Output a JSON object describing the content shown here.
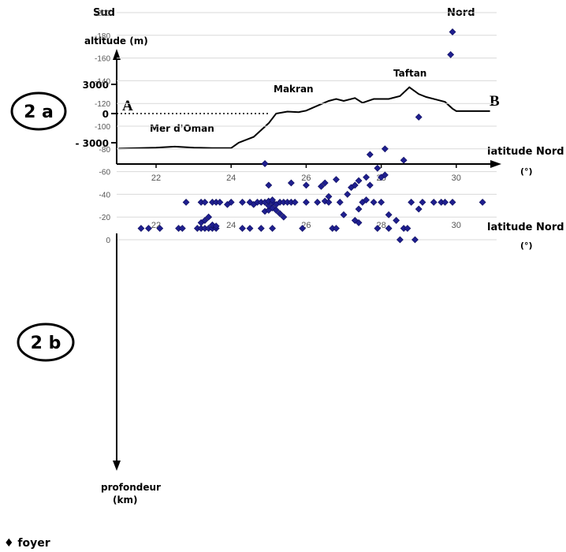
{
  "header": {
    "left": "Sud",
    "right": "Nord"
  },
  "legend_text": "♦ foyer",
  "chart_data": [
    {
      "panel": "2 a",
      "type": "line",
      "ylabel": "altitude (m)",
      "xlabel": "latitude Nord",
      "xunit": "(°)",
      "xlim": [
        21,
        31
      ],
      "ylim": [
        -4500,
        5000
      ],
      "xticks": [
        "22",
        "24",
        "26",
        "28",
        "30"
      ],
      "yticks": [
        "3000",
        "0",
        "- 3000"
      ],
      "annotations": {
        "A": "A",
        "B": "B",
        "sea": "Mer d'Oman",
        "makran": "Makran",
        "taftan": "Taftan"
      },
      "profile": [
        [
          21.0,
          -3600
        ],
        [
          22.0,
          -3500
        ],
        [
          22.5,
          -3400
        ],
        [
          23.0,
          -3500
        ],
        [
          23.5,
          -3550
        ],
        [
          24.0,
          -3550
        ],
        [
          24.2,
          -3000
        ],
        [
          24.6,
          -2400
        ],
        [
          25.0,
          -1000
        ],
        [
          25.2,
          0
        ],
        [
          25.5,
          200
        ],
        [
          25.8,
          150
        ],
        [
          26.0,
          300
        ],
        [
          26.3,
          800
        ],
        [
          26.6,
          1300
        ],
        [
          26.8,
          1500
        ],
        [
          27.0,
          1300
        ],
        [
          27.3,
          1600
        ],
        [
          27.5,
          1100
        ],
        [
          27.8,
          1500
        ],
        [
          28.2,
          1500
        ],
        [
          28.5,
          1800
        ],
        [
          28.75,
          2700
        ],
        [
          29.0,
          2000
        ],
        [
          29.2,
          1700
        ],
        [
          29.5,
          1400
        ],
        [
          29.7,
          1200
        ],
        [
          29.9,
          500
        ],
        [
          30.0,
          250
        ],
        [
          30.9,
          250
        ]
      ]
    },
    {
      "panel": "2 b",
      "type": "scatter",
      "ylabel": "profondeur (km)",
      "xlabel": "latitude Nord",
      "xunit": "(°)",
      "xlim": [
        21,
        31
      ],
      "ylim": [
        -200,
        0
      ],
      "xticks": [
        "22",
        "24",
        "26",
        "28",
        "30"
      ],
      "yticks": [
        "0",
        "-20",
        "-40",
        "-60",
        "-80",
        "-100",
        "-120",
        "-140",
        "-160",
        "-180",
        "-200"
      ],
      "series": [
        {
          "values": [
            [
              21.6,
              -10
            ],
            [
              21.8,
              -10
            ],
            [
              22.1,
              -10
            ],
            [
              22.6,
              -10
            ],
            [
              22.7,
              -10
            ],
            [
              23.1,
              -10
            ],
            [
              23.2,
              -10
            ],
            [
              23.3,
              -10
            ],
            [
              23.4,
              -10
            ],
            [
              23.5,
              -10
            ],
            [
              23.6,
              -10
            ],
            [
              23.2,
              -15
            ],
            [
              23.3,
              -17
            ],
            [
              23.5,
              -13
            ],
            [
              23.4,
              -20
            ],
            [
              23.6,
              -12
            ],
            [
              22.8,
              -33
            ],
            [
              23.2,
              -33
            ],
            [
              23.3,
              -33
            ],
            [
              23.5,
              -33
            ],
            [
              23.6,
              -33
            ],
            [
              23.7,
              -33
            ],
            [
              23.9,
              -31
            ],
            [
              24.0,
              -33
            ],
            [
              24.3,
              -10
            ],
            [
              24.5,
              -10
            ],
            [
              24.8,
              -10
            ],
            [
              25.1,
              -10
            ],
            [
              24.3,
              -33
            ],
            [
              24.5,
              -33
            ],
            [
              24.6,
              -31
            ],
            [
              24.7,
              -33
            ],
            [
              24.8,
              -33
            ],
            [
              24.9,
              -25
            ],
            [
              25.0,
              -26
            ],
            [
              25.1,
              -28
            ],
            [
              25.2,
              -26
            ],
            [
              25.3,
              -23
            ],
            [
              24.9,
              -33
            ],
            [
              25.0,
              -30
            ],
            [
              25.0,
              -34
            ],
            [
              25.1,
              -33
            ],
            [
              25.2,
              -31
            ],
            [
              25.3,
              -33
            ],
            [
              25.4,
              -33
            ],
            [
              25.5,
              -33
            ],
            [
              25.6,
              -33
            ],
            [
              25.7,
              -33
            ],
            [
              25.1,
              -35
            ],
            [
              25.4,
              -20
            ],
            [
              25.0,
              -48
            ],
            [
              24.9,
              -67
            ],
            [
              25.6,
              -50
            ],
            [
              25.9,
              -10
            ],
            [
              26.0,
              -33
            ],
            [
              26.0,
              -48
            ],
            [
              26.3,
              -33
            ],
            [
              26.4,
              -47
            ],
            [
              26.5,
              -34
            ],
            [
              26.6,
              -33
            ],
            [
              26.6,
              -38
            ],
            [
              26.5,
              -50
            ],
            [
              26.7,
              -10
            ],
            [
              26.8,
              -10
            ],
            [
              26.9,
              -33
            ],
            [
              26.8,
              -53
            ],
            [
              27.0,
              -22
            ],
            [
              27.1,
              -40
            ],
            [
              27.2,
              -46
            ],
            [
              27.3,
              -17
            ],
            [
              27.4,
              -15
            ],
            [
              27.4,
              -27
            ],
            [
              27.5,
              -33
            ],
            [
              27.3,
              -48
            ],
            [
              27.4,
              -52
            ],
            [
              27.6,
              -35
            ],
            [
              27.6,
              -55
            ],
            [
              27.7,
              -48
            ],
            [
              27.7,
              -75
            ],
            [
              27.8,
              -33
            ],
            [
              27.9,
              -10
            ],
            [
              27.9,
              -63
            ],
            [
              28.0,
              -33
            ],
            [
              28.0,
              -55
            ],
            [
              28.1,
              -57
            ],
            [
              28.1,
              -80
            ],
            [
              28.2,
              -22
            ],
            [
              28.2,
              -10
            ],
            [
              28.4,
              -17
            ],
            [
              28.5,
              0
            ],
            [
              28.6,
              -10
            ],
            [
              28.7,
              -10
            ],
            [
              28.6,
              -70
            ],
            [
              28.8,
              -33
            ],
            [
              28.9,
              0
            ],
            [
              29.0,
              -27
            ],
            [
              29.0,
              -108
            ],
            [
              29.1,
              -33
            ],
            [
              29.4,
              -33
            ],
            [
              29.6,
              -33
            ],
            [
              29.7,
              -33
            ],
            [
              29.9,
              -33
            ],
            [
              29.85,
              -163
            ],
            [
              29.9,
              -183
            ],
            [
              30.7,
              -33
            ]
          ]
        }
      ]
    }
  ]
}
